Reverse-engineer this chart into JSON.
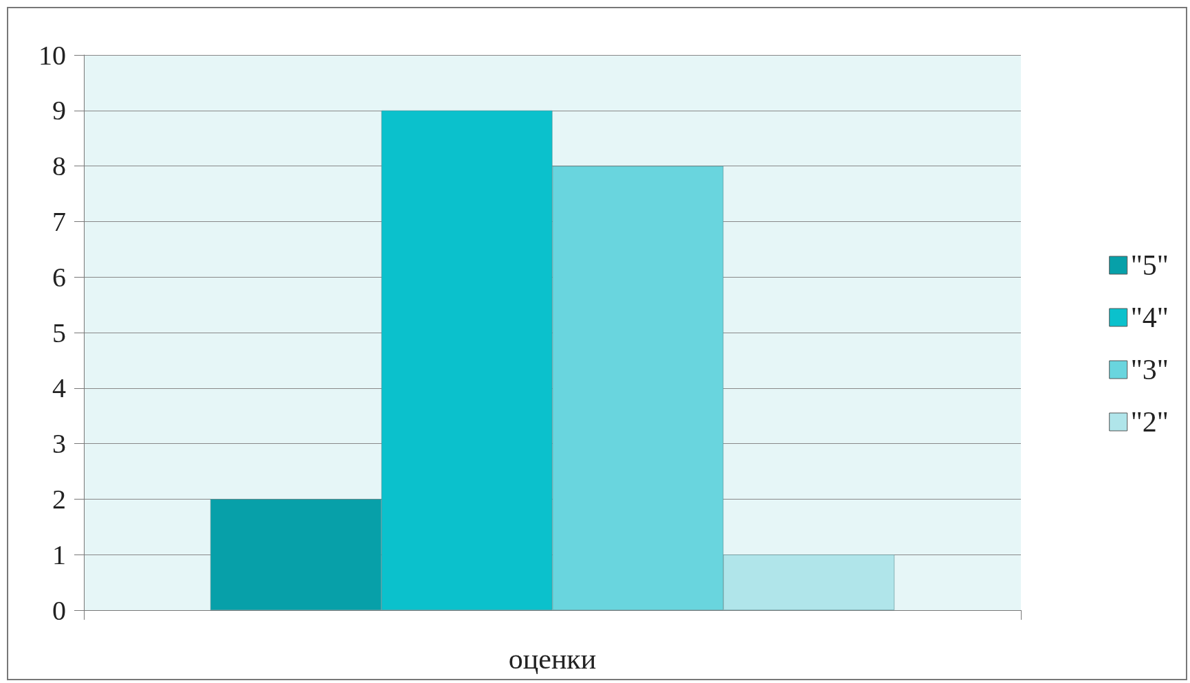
{
  "chart_data": {
    "type": "bar",
    "xlabel": "оценки",
    "categories": [
      null
    ],
    "series": [
      {
        "name": "\"5\"",
        "color": "#07a0a9",
        "values": [
          2
        ]
      },
      {
        "name": "\"4\"",
        "color": "#0bc1cc",
        "values": [
          9
        ]
      },
      {
        "name": "\"3\"",
        "color": "#69d5de",
        "values": [
          8
        ]
      },
      {
        "name": "\"2\"",
        "color": "#b0e5ea",
        "values": [
          1
        ]
      }
    ],
    "ylim": [
      0,
      10
    ],
    "yticks": [
      0,
      1,
      2,
      3,
      4,
      5,
      6,
      7,
      8,
      9,
      10
    ],
    "grid": "y",
    "legend": "right"
  }
}
